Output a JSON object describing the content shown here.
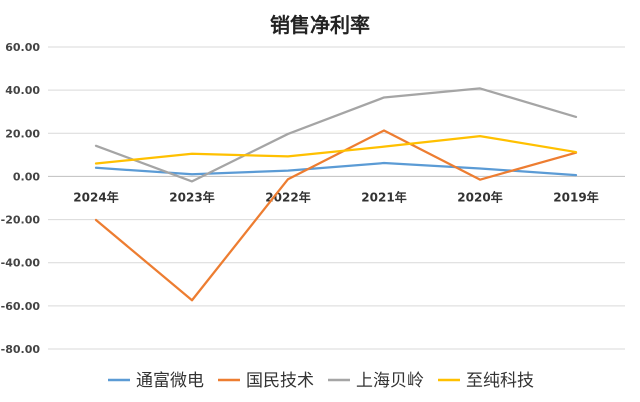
{
  "chart_data": {
    "type": "line",
    "title": "销售净利率",
    "categories": [
      "2024年",
      "2023年",
      "2022年",
      "2021年",
      "2020年",
      "2019年"
    ],
    "ylim": [
      -80,
      60
    ],
    "yticks": [
      "60.00",
      "40.00",
      "20.00",
      "0.00",
      "-20.00",
      "-40.00",
      "-60.00",
      "-80.00"
    ],
    "grid": true,
    "legend_position": "bottom",
    "series": [
      {
        "name": "通富微电",
        "color": "#5b9bd5",
        "values": [
          4.0,
          1.0,
          2.7,
          6.2,
          3.7,
          0.6
        ]
      },
      {
        "name": "国民技术",
        "color": "#ed7d31",
        "values": [
          -20.2,
          -57.4,
          -1.3,
          21.3,
          -1.5,
          11.0
        ]
      },
      {
        "name": "上海贝岭",
        "color": "#a5a5a5",
        "values": [
          14.2,
          -2.3,
          19.7,
          36.6,
          40.8,
          27.6
        ]
      },
      {
        "name": "至纯科技",
        "color": "#ffc000",
        "values": [
          6.0,
          10.5,
          9.3,
          13.8,
          18.7,
          11.3
        ]
      }
    ]
  }
}
